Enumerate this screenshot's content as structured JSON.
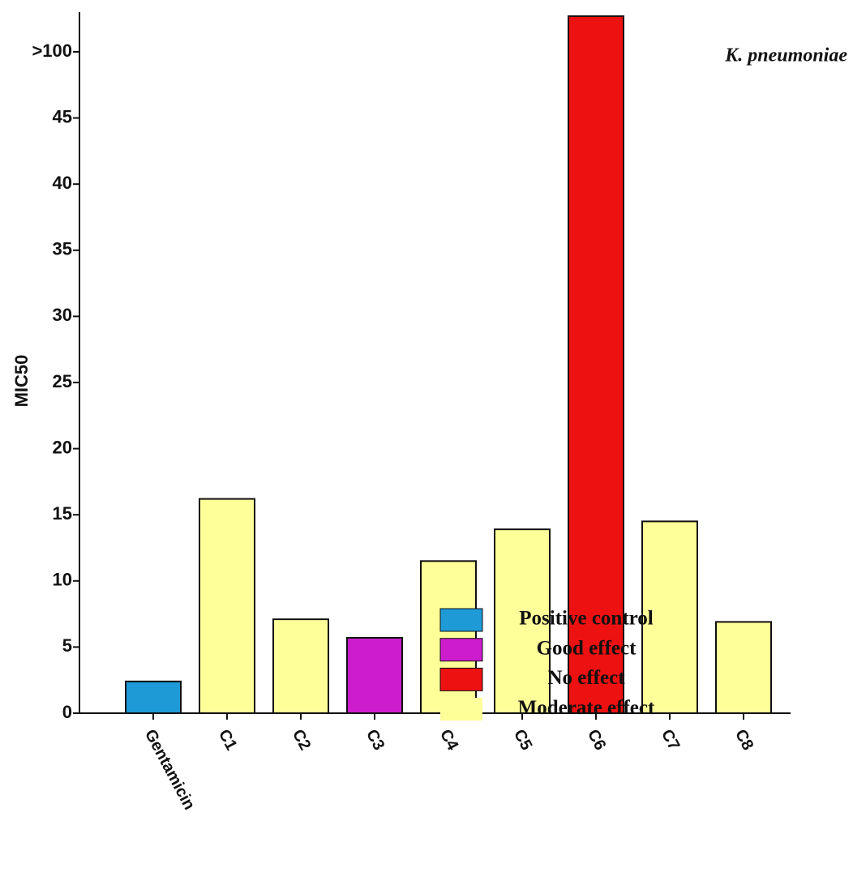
{
  "chart_data": {
    "type": "bar",
    "y_label": "MIC50",
    "annotation": "K. pneumoniae",
    "categories": [
      "Gentamicin",
      "C1",
      "C2",
      "C3",
      "C4",
      "C5",
      "C6",
      "C7",
      "C8"
    ],
    "values": [
      2.4,
      16.2,
      7.1,
      5.7,
      11.5,
      13.9,
      52.7,
      14.5,
      6.9
    ],
    "colors": [
      "#1e9ad6",
      "#ffff99",
      "#ffff99",
      "#cc1ccc",
      "#ffff99",
      "#ffff99",
      "#ee1111",
      "#ffff99",
      "#ffff99"
    ],
    "ylim": [
      0,
      53
    ],
    "yticks": [
      0,
      5,
      10,
      15,
      20,
      25,
      30,
      35,
      40,
      45,
      {
        "value": 50,
        "label": ">100"
      }
    ],
    "legend": [
      {
        "name": "Positive control",
        "color": "#1e9ad6"
      },
      {
        "name": "Good effect",
        "color": "#cc1ccc"
      },
      {
        "name": "No effect",
        "color": "#ee1111"
      },
      {
        "name": "Moderate effect",
        "color": "#ffff99"
      }
    ]
  }
}
